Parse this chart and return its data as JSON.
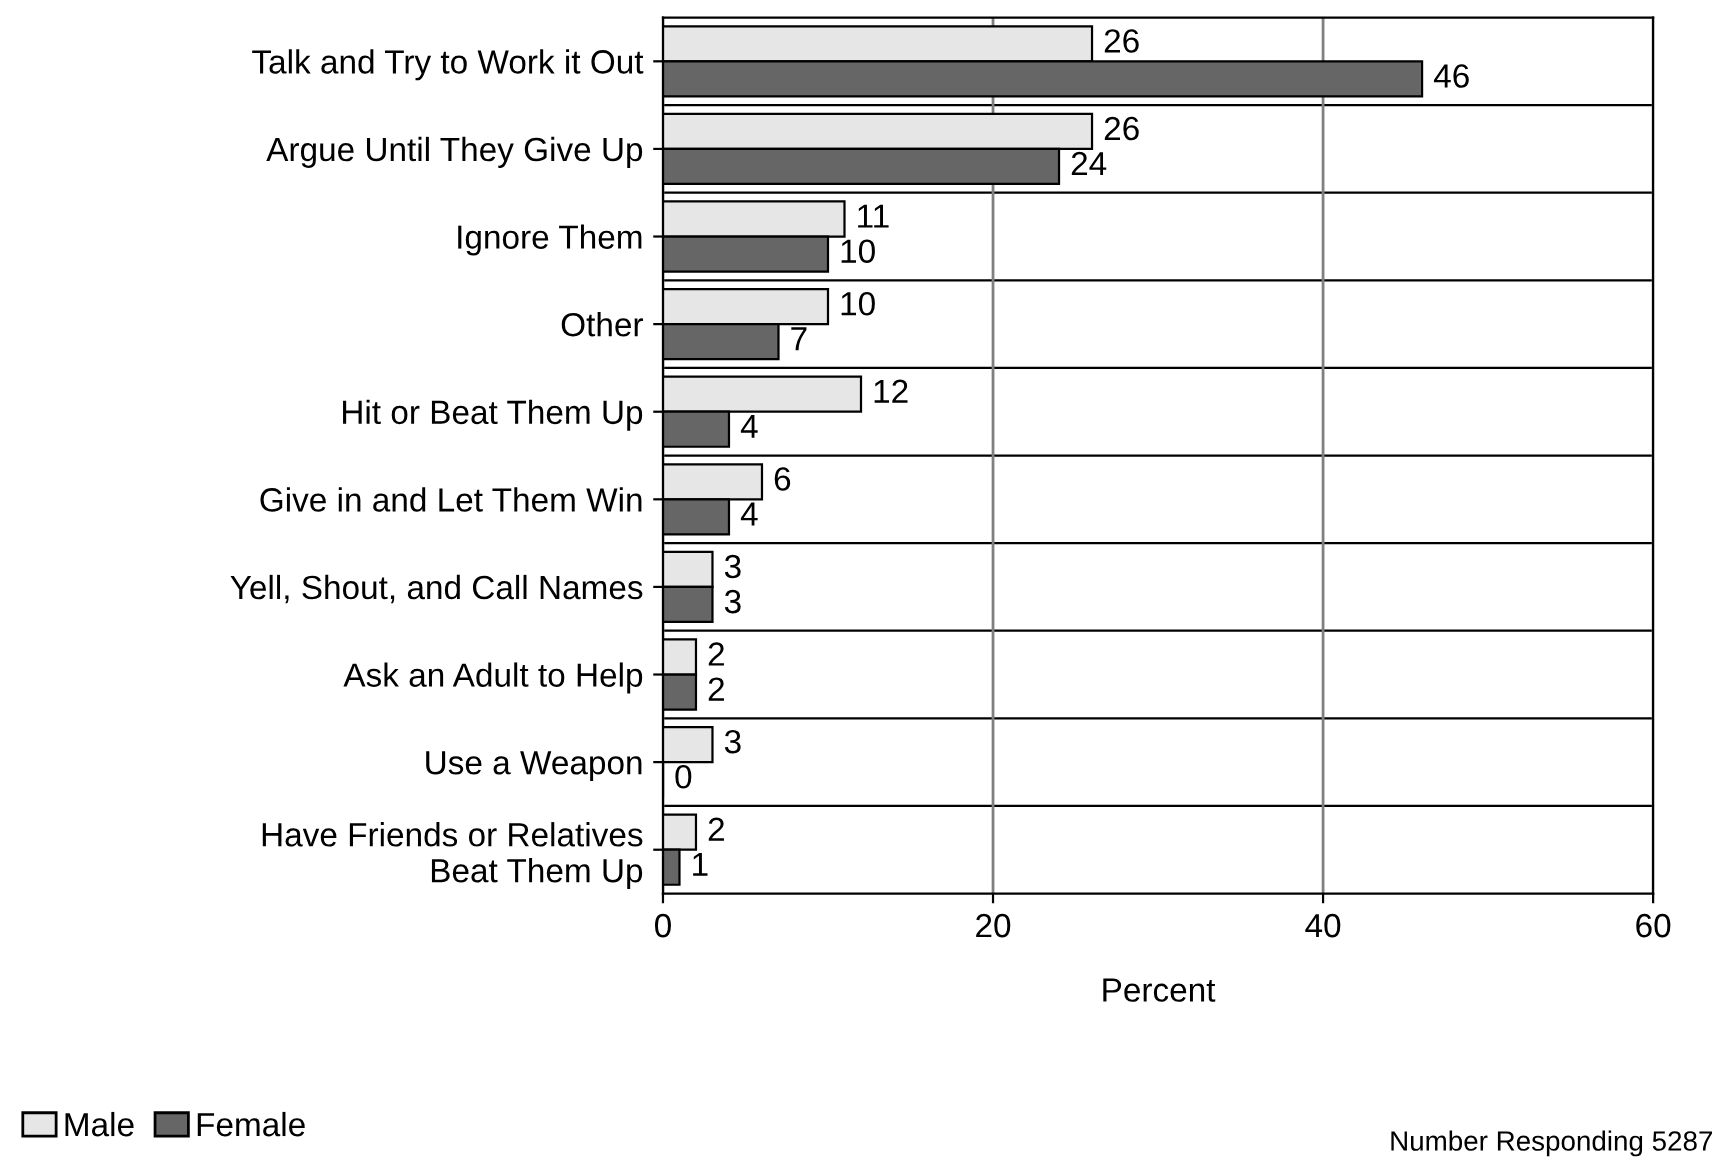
{
  "chart_data": {
    "type": "bar",
    "orientation": "horizontal",
    "xlabel": "Percent",
    "categories": [
      "Talk and Try to Work it Out",
      "Argue Until They Give Up",
      "Ignore Them",
      "Other",
      "Hit or Beat Them Up",
      "Give in and Let Them Win",
      "Yell, Shout, and Call Names",
      "Ask an Adult to Help",
      "Use a Weapon",
      "Have Friends or Relatives\nBeat Them Up"
    ],
    "series": [
      {
        "name": "Male",
        "color": "#e6e6e6",
        "values": [
          26,
          26,
          11,
          10,
          12,
          6,
          3,
          2,
          3,
          2
        ]
      },
      {
        "name": "Female",
        "color": "#666666",
        "values": [
          46,
          24,
          10,
          7,
          4,
          4,
          3,
          2,
          0,
          1
        ]
      }
    ],
    "xlim": [
      0,
      60
    ],
    "xticks": [
      0,
      20,
      40,
      60
    ],
    "grid": "x",
    "legend": "bottom left",
    "data_labels": true,
    "annotations": [
      "Number Responding 5287"
    ]
  }
}
